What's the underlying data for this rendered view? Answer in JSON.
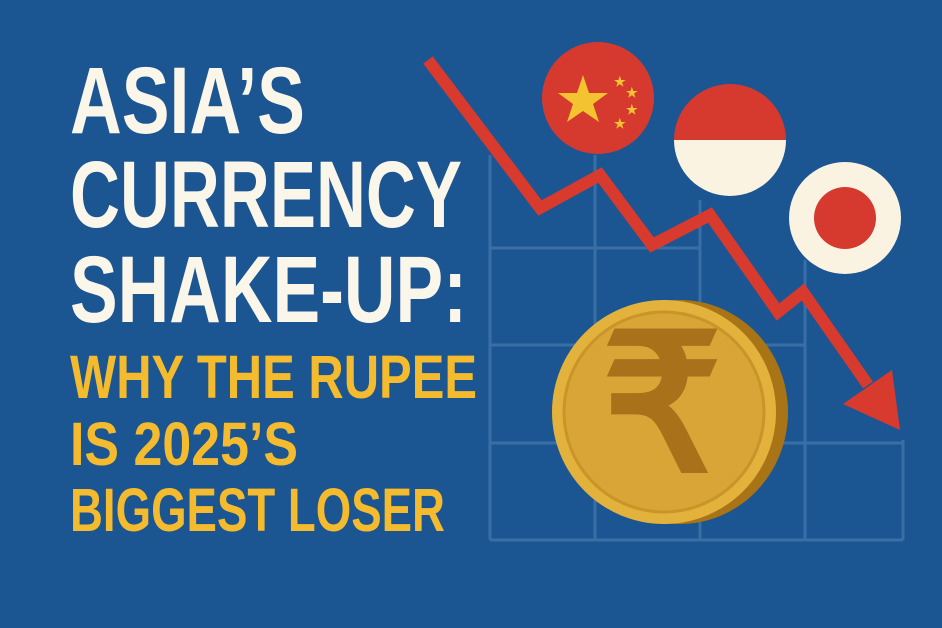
{
  "headline": {
    "line1": "ASIA’S",
    "line2": "CURRENCY",
    "line3": "SHAKE-UP:",
    "sub1": "WHY THE RUPEE",
    "sub2": "IS 2025’S",
    "sub3": "BIGGEST LOSER"
  },
  "illustration": {
    "trend": "downward",
    "flags": [
      "china-flag-icon",
      "indonesia-flag-icon",
      "japan-flag-icon"
    ],
    "coin_symbol": "₹"
  },
  "colors": {
    "background": "#1b5592",
    "title_white": "#fbf6ea",
    "title_yellow": "#f4bb2e",
    "arrow_red": "#d93a2e",
    "grid": "#3a6fa6",
    "coin_gold": "#e3b23c"
  }
}
